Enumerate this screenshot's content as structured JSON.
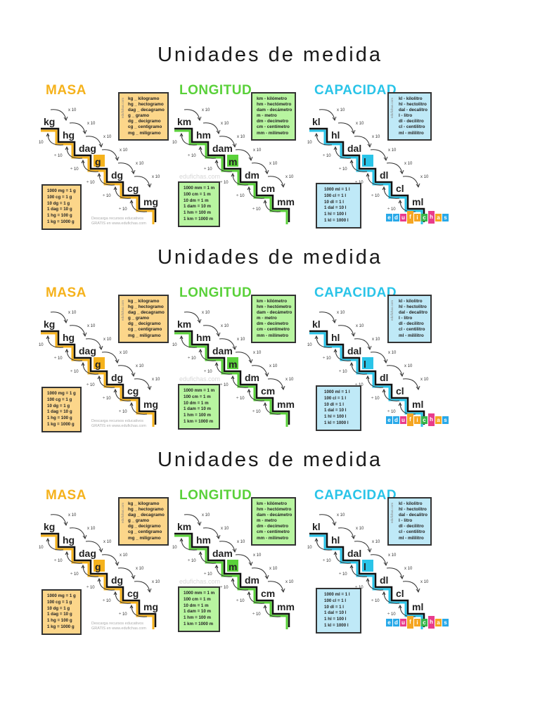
{
  "document": {
    "blocks_count": 3,
    "title": "Unidades de medida",
    "panels": {
      "masa": {
        "title": "MASA",
        "color": "#f5b21c",
        "box_color": "#fcd68a",
        "units": [
          "kg",
          "hg",
          "dag",
          "g",
          "dg",
          "cg",
          "mg"
        ],
        "highlight_index": 3,
        "multiply_label": "x 10",
        "divide_label": "÷ 10",
        "legend": [
          "kg _ kilogramo",
          "hg _ hectogramo",
          "dag _ decagramo",
          "g _ gramo",
          "dg _ decigramo",
          "cg _ centigramo",
          "mg _ miligramo"
        ],
        "legend_vertical": "edufichas.com",
        "equivalences": [
          "1000 mg = 1 g",
          "100 cg = 1 g",
          "10 dg = 1 g",
          "1 dag = 10 g",
          "1 hg = 100 g",
          "1 kg = 1000 g"
        ],
        "credit_line1": "Descarga recursos educativos",
        "credit_line2": "GRATIS en www.edufichas.com"
      },
      "longitud": {
        "title": "LONGITUD",
        "color": "#5ad13a",
        "box_color": "#b8f5a0",
        "units": [
          "km",
          "hm",
          "dam",
          "m",
          "dm",
          "cm",
          "mm"
        ],
        "highlight_index": 3,
        "multiply_label": "x 10",
        "divide_label": "÷ 10",
        "legend": [
          "km - kilómetro",
          "hm - hectómetro",
          "dam - decámetro",
          "m - metro",
          "dm - decímetro",
          "cm - centímetro",
          "mm - milímetro"
        ],
        "equivalences": [
          "1000 mm = 1 m",
          "100 cm = 1 m",
          "10 dm = 1 m",
          "1 dam = 10 m",
          "1 hm = 100 m",
          "1 km = 1000 m"
        ],
        "watermark": "edufichas.com"
      },
      "capacidad": {
        "title": "CAPACIDAD",
        "color": "#2ac4e8",
        "box_color": "#bfe9f7",
        "units": [
          "kl",
          "hl",
          "dal",
          "l",
          "dl",
          "cl",
          "ml"
        ],
        "highlight_index": 3,
        "multiply_label": "x 10",
        "divide_label": "÷ 10",
        "legend": [
          "kl - kilolitro",
          "hl - hectolitro",
          "dal - decalitro",
          "l - litro",
          "dl - decilitro",
          "cl - centilitro",
          "ml - mililitro"
        ],
        "legend_vertical": "edufichas.com",
        "equivalences": [
          "1000 ml = 1 l",
          "100 cl = 1 l",
          "10 dl = 1 l",
          "1 dal = 10 l",
          "1 hl = 100 l",
          "1 kl = 1000 l"
        ],
        "logo": {
          "letters": [
            "e",
            "d",
            "u",
            "f",
            "i",
            "c",
            "h",
            "a",
            "s"
          ],
          "colors": [
            "#29a9e8",
            "#29a9e8",
            "#e83c8c",
            "#f5a623",
            "#f5a623",
            "#3ab54a",
            "#e83c8c",
            "#f5a623",
            "#29a9e8"
          ]
        }
      }
    }
  }
}
